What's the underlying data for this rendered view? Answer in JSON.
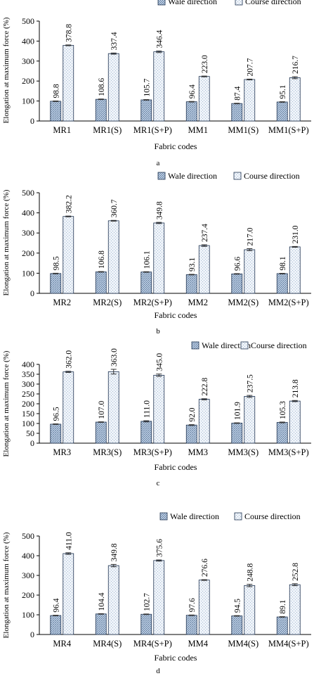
{
  "chart_data": [
    {
      "type": "bar",
      "panel_label": "a",
      "categories": [
        "MR1",
        "MR1(S)",
        "MR1(S+P)",
        "MM1",
        "MM1(S)",
        "MM1(S+P)"
      ],
      "series": [
        {
          "name": "Wale direction",
          "values": [
            98.8,
            108.6,
            105.7,
            96.4,
            87.4,
            95.1
          ],
          "pattern": "wale"
        },
        {
          "name": "Course direction",
          "values": [
            378.8,
            337.4,
            346.4,
            223.0,
            207.7,
            216.7
          ],
          "pattern": "course"
        }
      ],
      "value_labels": [
        [
          "98.8",
          "108.6",
          "105.7",
          "96.4",
          "87.4",
          "95.1"
        ],
        [
          "378.8",
          "337.4",
          "346.4",
          "223.0",
          "207.7",
          "216.7"
        ]
      ],
      "errors": [
        [
          1.5,
          1.5,
          1.5,
          1.5,
          1.5,
          1.5
        ],
        [
          2,
          3,
          4,
          2,
          2,
          5
        ]
      ],
      "xlabel": "Fabric codes",
      "ylabel": "Elongation at maximum force (%)",
      "ylim": [
        0,
        500
      ],
      "yticks": [
        0,
        100,
        200,
        300,
        400,
        500
      ],
      "grid": false,
      "legend_position": "top-right"
    },
    {
      "type": "bar",
      "panel_label": "b",
      "categories": [
        "MR2",
        "MR2(S)",
        "MR2(S+P)",
        "MM2",
        "MM2(S)",
        "MM2(S+P)"
      ],
      "series": [
        {
          "name": "Wale direction",
          "values": [
            98.5,
            106.8,
            106.1,
            93.1,
            96.6,
            98.1
          ],
          "pattern": "wale"
        },
        {
          "name": "Course direction",
          "values": [
            382.2,
            360.7,
            349.8,
            237.4,
            217.0,
            231.0
          ],
          "pattern": "course"
        }
      ],
      "value_labels": [
        [
          "98.5",
          "106.8",
          "106.1",
          "93.1",
          "96.6",
          "98.1"
        ],
        [
          "382.2",
          "360.7",
          "349.8",
          "237.4",
          "217.0",
          "231.0"
        ]
      ],
      "errors": [
        [
          1.5,
          1.5,
          1.5,
          1.5,
          1.5,
          1.5
        ],
        [
          2,
          2,
          3,
          4,
          5,
          2
        ]
      ],
      "xlabel": "Fabric codes",
      "ylabel": "Elongation at maximum force (%)",
      "ylim": [
        0,
        500
      ],
      "yticks": [
        0,
        100,
        200,
        300,
        400,
        500
      ],
      "grid": false,
      "legend_position": "top-right"
    },
    {
      "type": "bar",
      "panel_label": "c",
      "categories": [
        "MR3",
        "MR3(S)",
        "MR3(S+P)",
        "MM3",
        "MM3(S)",
        "MM3(S+P)"
      ],
      "series": [
        {
          "name": "Wale direction",
          "values": [
            96.5,
            107.0,
            111.0,
            92.0,
            101.9,
            105.3
          ],
          "pattern": "wale"
        },
        {
          "name": "Course direction",
          "values": [
            362.0,
            363.0,
            345.0,
            222.8,
            237.5,
            213.8
          ],
          "pattern": "course"
        }
      ],
      "value_labels": [
        [
          "96.5",
          "107.0",
          "111.0",
          "92.0",
          "101.9",
          "105.3"
        ],
        [
          "362.0",
          "363.0",
          "345.0",
          "222.8",
          "237.5",
          "213.8"
        ]
      ],
      "errors": [
        [
          1.5,
          1.5,
          3,
          2,
          1.5,
          2
        ],
        [
          3,
          12,
          6,
          3,
          5,
          3
        ]
      ],
      "xlabel": "Fabric codes",
      "ylabel": "Elongation at maximum force (%)",
      "ylim": [
        0,
        400
      ],
      "yticks": [
        0,
        50,
        100,
        150,
        200,
        250,
        300,
        350,
        400
      ],
      "grid": false,
      "legend_position": "top-right"
    },
    {
      "type": "bar",
      "panel_label": "d",
      "categories": [
        "MR4",
        "MR4(S)",
        "MR4(S+P)",
        "MM4",
        "MM4(S)",
        "MM4(S+P)"
      ],
      "series": [
        {
          "name": "Wale direction",
          "values": [
            96.4,
            104.4,
            102.7,
            97.6,
            94.5,
            89.1
          ],
          "pattern": "wale"
        },
        {
          "name": "Course direction",
          "values": [
            411.0,
            349.8,
            375.6,
            276.6,
            248.8,
            252.8
          ],
          "pattern": "course"
        }
      ],
      "value_labels": [
        [
          "96.4",
          "104.4",
          "102.7",
          "97.6",
          "94.5",
          "89.1"
        ],
        [
          "411.0",
          "349.8",
          "375.6",
          "276.6",
          "248.8",
          "252.8"
        ]
      ],
      "errors": [
        [
          1.5,
          1.5,
          1.5,
          1.5,
          1.5,
          1.5
        ],
        [
          4,
          6,
          3,
          2,
          6,
          5
        ]
      ],
      "xlabel": "Fabric codes",
      "ylabel": "Elongation at maximum force (%)",
      "ylim": [
        0,
        500
      ],
      "yticks": [
        0,
        100,
        200,
        300,
        400,
        500
      ],
      "grid": false,
      "legend_position": "top-right"
    }
  ],
  "colors": {
    "wale_fill": "#b9cbe0",
    "wale_stroke": "#1f3350",
    "course_fill": "#eef3f9",
    "course_stroke": "#1f3350",
    "axis": "#000000"
  }
}
